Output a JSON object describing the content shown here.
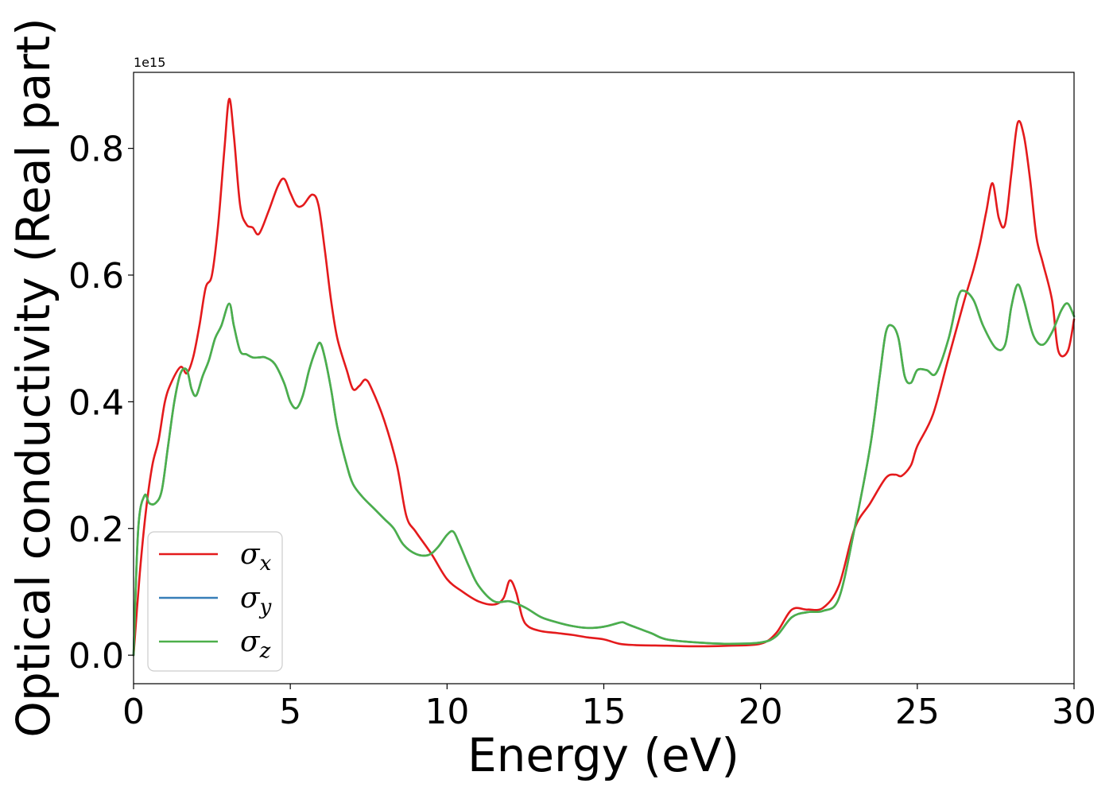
{
  "chart_data": {
    "type": "line",
    "xlabel": "Energy (eV)",
    "ylabel": "Optical conductivity (Real part)",
    "y_offset_label": "1e15",
    "xlim": [
      0,
      30
    ],
    "ylim": [
      -0.045,
      0.92
    ],
    "x_ticks": [
      0,
      5,
      10,
      15,
      20,
      25,
      30
    ],
    "x_tick_labels": [
      "0",
      "5",
      "10",
      "15",
      "20",
      "25",
      "30"
    ],
    "y_ticks": [
      0.0,
      0.2,
      0.4,
      0.6,
      0.8
    ],
    "y_tick_labels": [
      "0.0",
      "0.2",
      "0.4",
      "0.6",
      "0.8"
    ],
    "grid": false,
    "legend_position": "lower-left",
    "series": [
      {
        "name": "σx",
        "symbol": "σ",
        "subscript": "x",
        "color": "#e41a1c",
        "x": [
          0,
          0.2,
          0.4,
          0.6,
          0.8,
          1.0,
          1.2,
          1.5,
          1.7,
          1.9,
          2.1,
          2.3,
          2.5,
          2.7,
          2.9,
          3.05,
          3.2,
          3.4,
          3.6,
          3.8,
          4.0,
          4.3,
          4.6,
          4.8,
          5.0,
          5.2,
          5.4,
          5.7,
          5.9,
          6.1,
          6.3,
          6.5,
          6.8,
          7.0,
          7.2,
          7.4,
          7.6,
          8.0,
          8.4,
          8.7,
          9.0,
          9.5,
          10.0,
          10.5,
          11.0,
          11.5,
          11.8,
          12.0,
          12.2,
          12.4,
          12.6,
          13.0,
          13.5,
          14.0,
          14.5,
          15.0,
          15.5,
          16.0,
          17.0,
          18.0,
          19.0,
          20.0,
          20.5,
          21.0,
          21.5,
          22.0,
          22.5,
          23.0,
          23.5,
          24.0,
          24.3,
          24.5,
          24.8,
          25.0,
          25.5,
          26.0,
          26.5,
          26.8,
          27.0,
          27.2,
          27.4,
          27.6,
          27.8,
          28.0,
          28.2,
          28.4,
          28.6,
          28.8,
          29.0,
          29.3,
          29.5,
          29.8,
          30.0
        ],
        "y": [
          0.0,
          0.13,
          0.23,
          0.3,
          0.34,
          0.4,
          0.43,
          0.455,
          0.445,
          0.47,
          0.52,
          0.58,
          0.6,
          0.68,
          0.8,
          0.878,
          0.82,
          0.71,
          0.68,
          0.675,
          0.665,
          0.7,
          0.74,
          0.752,
          0.73,
          0.71,
          0.71,
          0.727,
          0.71,
          0.64,
          0.56,
          0.5,
          0.45,
          0.42,
          0.425,
          0.435,
          0.42,
          0.37,
          0.3,
          0.22,
          0.195,
          0.16,
          0.12,
          0.1,
          0.085,
          0.08,
          0.09,
          0.118,
          0.1,
          0.06,
          0.045,
          0.038,
          0.035,
          0.032,
          0.028,
          0.025,
          0.018,
          0.016,
          0.015,
          0.014,
          0.015,
          0.018,
          0.035,
          0.072,
          0.072,
          0.075,
          0.11,
          0.2,
          0.24,
          0.28,
          0.285,
          0.283,
          0.3,
          0.33,
          0.38,
          0.47,
          0.56,
          0.61,
          0.65,
          0.7,
          0.745,
          0.69,
          0.68,
          0.76,
          0.84,
          0.82,
          0.75,
          0.66,
          0.62,
          0.56,
          0.48,
          0.48,
          0.53
        ]
      },
      {
        "name": "σy",
        "symbol": "σ",
        "subscript": "y",
        "color": "#377eb8",
        "x": [
          0,
          0.15,
          0.35,
          0.5,
          0.7,
          0.9,
          1.1,
          1.3,
          1.5,
          1.7,
          1.85,
          2.0,
          2.2,
          2.4,
          2.6,
          2.8,
          3.05,
          3.2,
          3.4,
          3.6,
          3.8,
          4.0,
          4.2,
          4.5,
          4.8,
          5.0,
          5.2,
          5.4,
          5.6,
          5.8,
          5.95,
          6.1,
          6.3,
          6.5,
          6.8,
          7.0,
          7.3,
          7.7,
          8.0,
          8.3,
          8.6,
          9.0,
          9.4,
          9.7,
          10.0,
          10.2,
          10.4,
          10.7,
          11.0,
          11.5,
          12.0,
          12.5,
          13.0,
          13.5,
          14.0,
          14.5,
          15.0,
          15.4,
          15.6,
          15.8,
          16.5,
          17.0,
          18.0,
          19.0,
          20.0,
          20.5,
          21.0,
          21.5,
          22.0,
          22.5,
          23.0,
          23.5,
          23.8,
          24.0,
          24.2,
          24.4,
          24.6,
          24.8,
          25.0,
          25.3,
          25.6,
          26.0,
          26.3,
          26.5,
          26.8,
          27.1,
          27.5,
          27.8,
          28.0,
          28.2,
          28.4,
          28.7,
          29.0,
          29.3,
          29.6,
          29.8,
          30.0
        ],
        "y": [
          0.0,
          0.2,
          0.252,
          0.24,
          0.24,
          0.26,
          0.33,
          0.4,
          0.445,
          0.45,
          0.42,
          0.41,
          0.44,
          0.465,
          0.5,
          0.52,
          0.555,
          0.52,
          0.48,
          0.475,
          0.47,
          0.47,
          0.47,
          0.46,
          0.43,
          0.4,
          0.39,
          0.41,
          0.45,
          0.48,
          0.493,
          0.47,
          0.42,
          0.36,
          0.3,
          0.27,
          0.25,
          0.23,
          0.215,
          0.2,
          0.175,
          0.16,
          0.158,
          0.17,
          0.19,
          0.195,
          0.175,
          0.14,
          0.11,
          0.085,
          0.085,
          0.075,
          0.06,
          0.052,
          0.046,
          0.043,
          0.045,
          0.05,
          0.052,
          0.048,
          0.035,
          0.025,
          0.02,
          0.018,
          0.02,
          0.03,
          0.06,
          0.068,
          0.07,
          0.09,
          0.2,
          0.33,
          0.44,
          0.51,
          0.52,
          0.5,
          0.44,
          0.43,
          0.45,
          0.45,
          0.445,
          0.5,
          0.565,
          0.575,
          0.56,
          0.52,
          0.485,
          0.49,
          0.55,
          0.585,
          0.56,
          0.505,
          0.49,
          0.51,
          0.545,
          0.555,
          0.535
        ]
      },
      {
        "name": "σz",
        "symbol": "σ",
        "subscript": "z",
        "color": "#4daf4a",
        "x": [
          0,
          0.15,
          0.35,
          0.5,
          0.7,
          0.9,
          1.1,
          1.3,
          1.5,
          1.7,
          1.85,
          2.0,
          2.2,
          2.4,
          2.6,
          2.8,
          3.05,
          3.2,
          3.4,
          3.6,
          3.8,
          4.0,
          4.2,
          4.5,
          4.8,
          5.0,
          5.2,
          5.4,
          5.6,
          5.8,
          5.95,
          6.1,
          6.3,
          6.5,
          6.8,
          7.0,
          7.3,
          7.7,
          8.0,
          8.3,
          8.6,
          9.0,
          9.4,
          9.7,
          10.0,
          10.2,
          10.4,
          10.7,
          11.0,
          11.5,
          12.0,
          12.5,
          13.0,
          13.5,
          14.0,
          14.5,
          15.0,
          15.4,
          15.6,
          15.8,
          16.5,
          17.0,
          18.0,
          19.0,
          20.0,
          20.5,
          21.0,
          21.5,
          22.0,
          22.5,
          23.0,
          23.5,
          23.8,
          24.0,
          24.2,
          24.4,
          24.6,
          24.8,
          25.0,
          25.3,
          25.6,
          26.0,
          26.3,
          26.5,
          26.8,
          27.1,
          27.5,
          27.8,
          28.0,
          28.2,
          28.4,
          28.7,
          29.0,
          29.3,
          29.6,
          29.8,
          30.0
        ],
        "y": [
          0.0,
          0.2,
          0.252,
          0.24,
          0.24,
          0.26,
          0.33,
          0.4,
          0.445,
          0.45,
          0.42,
          0.41,
          0.44,
          0.465,
          0.5,
          0.52,
          0.555,
          0.52,
          0.48,
          0.475,
          0.47,
          0.47,
          0.47,
          0.46,
          0.43,
          0.4,
          0.39,
          0.41,
          0.45,
          0.48,
          0.493,
          0.47,
          0.42,
          0.36,
          0.3,
          0.27,
          0.25,
          0.23,
          0.215,
          0.2,
          0.175,
          0.16,
          0.158,
          0.17,
          0.19,
          0.195,
          0.175,
          0.14,
          0.11,
          0.085,
          0.085,
          0.075,
          0.06,
          0.052,
          0.046,
          0.043,
          0.045,
          0.05,
          0.052,
          0.048,
          0.035,
          0.025,
          0.02,
          0.018,
          0.02,
          0.03,
          0.06,
          0.068,
          0.07,
          0.09,
          0.2,
          0.33,
          0.44,
          0.51,
          0.52,
          0.5,
          0.44,
          0.43,
          0.45,
          0.45,
          0.445,
          0.5,
          0.565,
          0.575,
          0.56,
          0.52,
          0.485,
          0.49,
          0.55,
          0.585,
          0.56,
          0.505,
          0.49,
          0.51,
          0.545,
          0.555,
          0.535
        ]
      }
    ]
  }
}
